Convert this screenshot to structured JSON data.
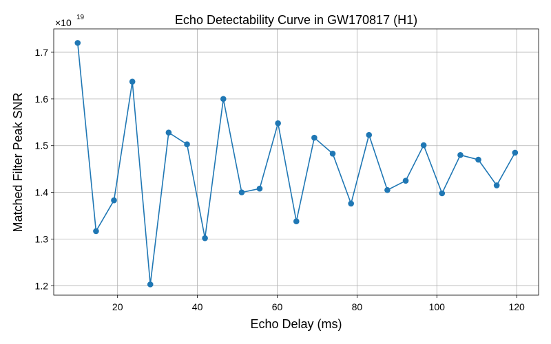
{
  "chart_data": {
    "type": "line",
    "title": "Echo Detectability Curve in GW170817 (H1)",
    "xlabel": "Echo Delay (ms)",
    "ylabel": "Matched Filter Peak SNR",
    "y_offset_base": "×10",
    "y_offset_exponent": "19",
    "xlim": [
      4,
      125.5
    ],
    "ylim": [
      1.18,
      1.75
    ],
    "x_ticks": [
      20,
      40,
      60,
      80,
      100,
      120
    ],
    "x_tick_labels": [
      "20",
      "40",
      "60",
      "80",
      "100",
      "120"
    ],
    "y_ticks": [
      1.2,
      1.3,
      1.4,
      1.5,
      1.6,
      1.7
    ],
    "y_tick_labels": [
      "1.2",
      "1.3",
      "1.4",
      "1.5",
      "1.6",
      "1.7"
    ],
    "grid": true,
    "color": "#1f77b4",
    "marker": "circle",
    "series": [
      {
        "x": [
          10.0,
          14.6,
          19.1,
          23.7,
          28.2,
          32.8,
          37.4,
          41.9,
          46.5,
          51.1,
          55.6,
          60.2,
          64.8,
          69.3,
          73.9,
          78.5,
          83.0,
          87.6,
          92.2,
          96.7,
          101.3,
          105.9,
          110.4,
          115.0,
          119.6
        ],
        "y": [
          1.72,
          1.317,
          1.383,
          1.637,
          1.203,
          1.528,
          1.503,
          1.302,
          1.6,
          1.4,
          1.408,
          1.548,
          1.338,
          1.517,
          1.483,
          1.376,
          1.523,
          1.405,
          1.425,
          1.501,
          1.398,
          1.48,
          1.47,
          1.415,
          1.485
        ]
      }
    ]
  }
}
